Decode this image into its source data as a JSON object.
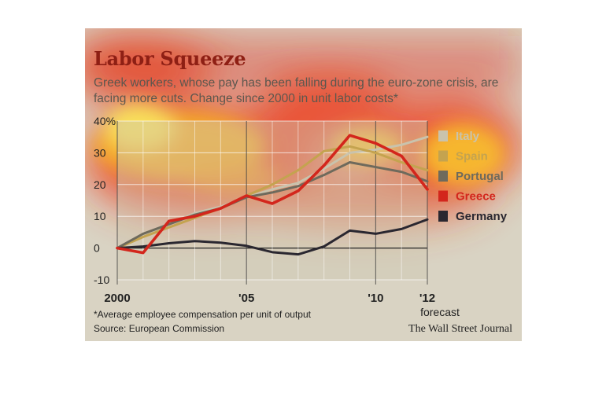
{
  "title": "Labor Squeeze",
  "subtitle": "Greek workers, whose pay has been falling during the euro-zone crisis, are facing more cuts. Change since 2000 in unit labor costs*",
  "footnote": "*Average employee compensation per unit of output",
  "source": "Source: European Commission",
  "credit": "The Wall Street Journal",
  "forecast_label": "forecast",
  "colors": {
    "background": "#d9d3c3",
    "title": "#8e1f14",
    "Italy": "#c9c3ad",
    "Spain": "#c4a34f",
    "Portugal": "#6e6a5c",
    "Greece": "#d3261c",
    "Germany": "#2a2730"
  },
  "chart_data": {
    "type": "line",
    "x": [
      2000,
      2001,
      2002,
      2003,
      2004,
      2005,
      2006,
      2007,
      2008,
      2009,
      2010,
      2011,
      2012
    ],
    "xticks": [
      {
        "value": 2000,
        "label": "2000"
      },
      {
        "value": 2005,
        "label": "'05"
      },
      {
        "value": 2010,
        "label": "'10"
      },
      {
        "value": 2012,
        "label": "'12"
      }
    ],
    "ylim": [
      -10,
      40
    ],
    "yticks": [
      {
        "value": 40,
        "label": "40%"
      },
      {
        "value": 30,
        "label": "30"
      },
      {
        "value": 20,
        "label": "20"
      },
      {
        "value": 10,
        "label": "10"
      },
      {
        "value": 0,
        "label": "0"
      },
      {
        "value": -10,
        "label": "-10"
      }
    ],
    "series": [
      {
        "name": "Italy",
        "values": [
          0,
          3.5,
          7.5,
          11,
          13,
          16,
          18.5,
          20.5,
          25,
          30,
          31,
          32.5,
          35
        ]
      },
      {
        "name": "Spain",
        "values": [
          0,
          3.5,
          6.5,
          9.5,
          12.5,
          16.5,
          20,
          24.5,
          30.5,
          32,
          30,
          27,
          24.5
        ]
      },
      {
        "name": "Portugal",
        "values": [
          0,
          4.5,
          7.5,
          10.5,
          12.5,
          16,
          17.5,
          19.5,
          23,
          27,
          25.5,
          24,
          21
        ]
      },
      {
        "name": "Greece",
        "values": [
          0,
          -1.5,
          8.5,
          10,
          12.5,
          16.5,
          14,
          18,
          26,
          35.5,
          33,
          29,
          18.5
        ]
      },
      {
        "name": "Germany",
        "values": [
          0,
          0.5,
          1.5,
          2.2,
          1.7,
          0.7,
          -1.3,
          -2,
          0.5,
          5.5,
          4.5,
          6,
          9
        ]
      }
    ]
  }
}
